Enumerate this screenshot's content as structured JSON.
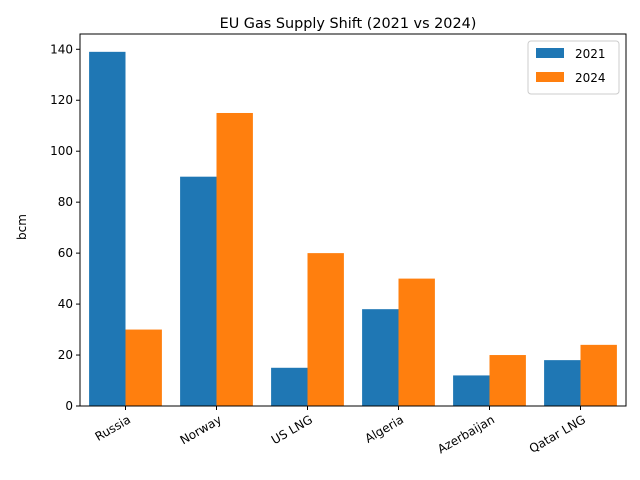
{
  "chart_data": {
    "type": "bar",
    "title": "EU Gas Supply Shift (2021 vs 2024)",
    "xlabel": "",
    "ylabel": "bcm",
    "categories": [
      "Russia",
      "Norway",
      "US LNG",
      "Algeria",
      "Azerbaijan",
      "Qatar LNG"
    ],
    "series": [
      {
        "name": "2021",
        "values": [
          139,
          90,
          15,
          38,
          12,
          18
        ],
        "color": "#1f77b4"
      },
      {
        "name": "2024",
        "values": [
          30,
          115,
          60,
          50,
          20,
          24
        ],
        "color": "#ff7f0e"
      }
    ],
    "ylim": [
      0,
      146
    ],
    "yticks": [
      "0",
      "20",
      "40",
      "60",
      "80",
      "100",
      "120",
      "140"
    ],
    "grid": false,
    "legend_position": "top-right",
    "xtick_rotation": "30 degrees"
  }
}
